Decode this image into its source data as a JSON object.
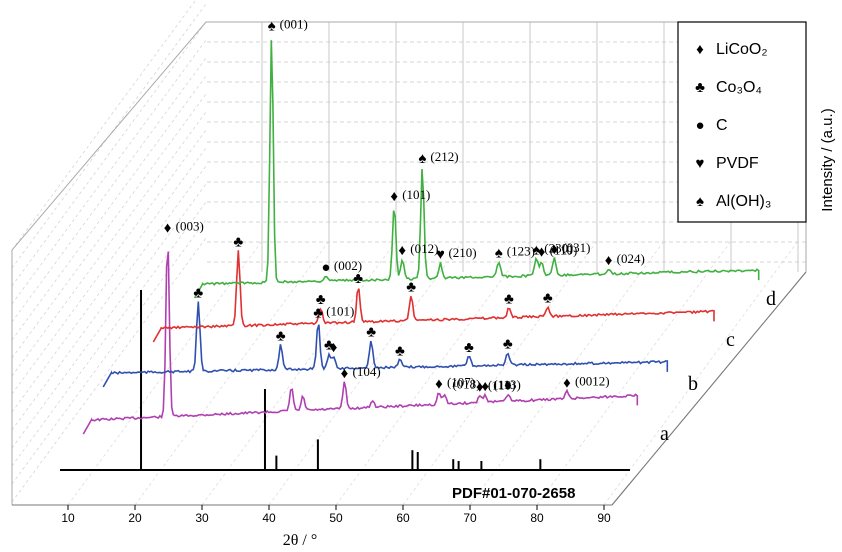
{
  "chart_data": {
    "type": "line",
    "title": "",
    "xlabel": "2θ / °",
    "ylabel": "Intensity / (a.u.)",
    "xlim": [
      5,
      93
    ],
    "x_ticks": [
      "10",
      "20",
      "30",
      "40",
      "50",
      "60",
      "70",
      "80",
      "90"
    ],
    "grid": true,
    "legend_position": "top-right",
    "legend": [
      {
        "symbol": "♦",
        "label": "LiCoO₂"
      },
      {
        "symbol": "♣",
        "label": "Co₃O₄"
      },
      {
        "symbol": "●",
        "label": "C"
      },
      {
        "symbol": "♥",
        "label": "PVDF"
      },
      {
        "symbol": "♠",
        "label": "Al(OH)₃"
      }
    ],
    "reference": {
      "name": "PDF#01-070-2658",
      "color": "#000000",
      "sticks": [
        {
          "x": 18.9,
          "y": 100
        },
        {
          "x": 37.4,
          "y": 45
        },
        {
          "x": 39.1,
          "y": 8
        },
        {
          "x": 45.3,
          "y": 17
        },
        {
          "x": 59.4,
          "y": 11
        },
        {
          "x": 60.2,
          "y": 10
        },
        {
          "x": 65.5,
          "y": 6
        },
        {
          "x": 66.3,
          "y": 5
        },
        {
          "x": 69.7,
          "y": 5
        },
        {
          "x": 78.5,
          "y": 6
        }
      ]
    },
    "series": [
      {
        "name": "a",
        "color": "#b040b0",
        "xrange": [
          7.5,
          89
        ],
        "peaks": [
          {
            "x": 18.9,
            "y": 75,
            "marker": "♦",
            "label": "(003)"
          },
          {
            "x": 37.4,
            "y": 10
          },
          {
            "x": 39.1,
            "y": 6
          },
          {
            "x": 45.3,
            "y": 11,
            "marker": "♦",
            "label": "(104)"
          },
          {
            "x": 49.5,
            "y": 3
          },
          {
            "x": 59.4,
            "y": 5,
            "marker": "♦",
            "label": "(107)"
          },
          {
            "x": 60.2,
            "y": 4,
            "label": "(018)"
          },
          {
            "x": 65.5,
            "y": 3,
            "marker": "♦",
            "label": "(110)"
          },
          {
            "x": 66.3,
            "y": 3,
            "marker": "♦",
            "label": "(113)"
          },
          {
            "x": 69.7,
            "y": 3,
            "marker": "♦"
          },
          {
            "x": 78.5,
            "y": 3,
            "marker": "♦",
            "label": "(0012)"
          }
        ]
      },
      {
        "name": "b",
        "color": "#3050b0",
        "xrange": [
          6,
          89
        ],
        "peaks": [
          {
            "x": 19.0,
            "y": 28,
            "marker": "♣"
          },
          {
            "x": 31.3,
            "y": 10,
            "marker": "♣"
          },
          {
            "x": 36.9,
            "y": 19,
            "marker": "♣",
            "label": "(101)"
          },
          {
            "x": 38.5,
            "y": 6,
            "marker": "♣"
          },
          {
            "x": 39.2,
            "y": 5,
            "marker": "♦"
          },
          {
            "x": 44.8,
            "y": 11,
            "marker": "♣"
          },
          {
            "x": 49.1,
            "y": 3,
            "marker": "♣"
          },
          {
            "x": 59.4,
            "y": 4,
            "marker": "♣"
          },
          {
            "x": 65.2,
            "y": 5,
            "marker": "♣"
          }
        ]
      },
      {
        "name": "c",
        "color": "#e03030",
        "xrange": [
          7.5,
          90
        ],
        "peaks": [
          {
            "x": 19.0,
            "y": 30,
            "marker": "♣"
          },
          {
            "x": 31.3,
            "y": 6,
            "marker": "♣"
          },
          {
            "x": 36.9,
            "y": 14,
            "marker": "♣"
          },
          {
            "x": 44.8,
            "y": 10,
            "marker": "♣"
          },
          {
            "x": 59.4,
            "y": 4,
            "marker": "♣"
          },
          {
            "x": 65.2,
            "y": 4,
            "marker": "♣"
          }
        ]
      },
      {
        "name": "d",
        "color": "#40b040",
        "xrange": [
          8,
          91
        ],
        "peaks": [
          {
            "x": 18.3,
            "y": 100,
            "marker": "♠",
            "label": "(001)"
          },
          {
            "x": 26.4,
            "y": 2,
            "marker": "●",
            "label": "(002)"
          },
          {
            "x": 36.6,
            "y": 30,
            "marker": "♦",
            "label": "(101)"
          },
          {
            "x": 37.8,
            "y": 8,
            "marker": "♦",
            "label": "(012)"
          },
          {
            "x": 40.8,
            "y": 45,
            "marker": "♠",
            "label": "(212)"
          },
          {
            "x": 43.5,
            "y": 6,
            "marker": "♥",
            "label": "(210)"
          },
          {
            "x": 52.2,
            "y": 6,
            "marker": "♠",
            "label": "(123)"
          },
          {
            "x": 57.8,
            "y": 7,
            "marker": "♠",
            "label": "(230)"
          },
          {
            "x": 58.6,
            "y": 6,
            "marker": "♦",
            "label": "(110)"
          },
          {
            "x": 60.5,
            "y": 7,
            "marker": "♦",
            "label": "(031)"
          },
          {
            "x": 68.6,
            "y": 2,
            "marker": "♦",
            "label": "(024)"
          }
        ]
      }
    ]
  }
}
